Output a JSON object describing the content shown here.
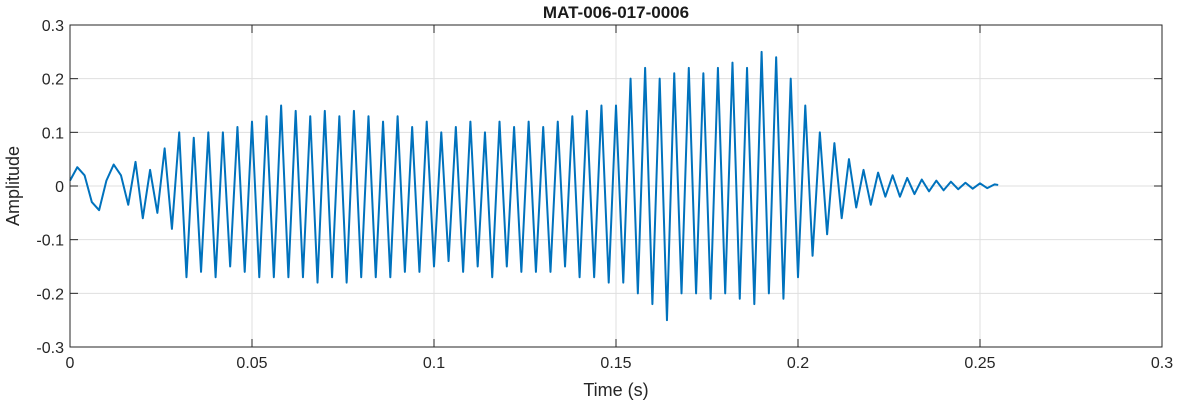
{
  "chart_data": {
    "type": "line",
    "title": "MAT-006-017-0006",
    "xlabel": "Time (s)",
    "ylabel": "Amplitude",
    "xlim": [
      0,
      0.3
    ],
    "ylim": [
      -0.3,
      0.3
    ],
    "grid": true,
    "x_ticks": [
      "0",
      "0.05",
      "0.1",
      "0.15",
      "0.2",
      "0.25",
      "0.3"
    ],
    "y_ticks": [
      "0.3",
      "0.2",
      "0.1",
      "0",
      "-0.1",
      "-0.2",
      "-0.3"
    ],
    "x_tick_values": [
      0,
      0.05,
      0.1,
      0.15,
      0.2,
      0.25,
      0.3
    ],
    "y_tick_values": [
      0.3,
      0.2,
      0.1,
      0,
      -0.1,
      -0.2,
      -0.3
    ],
    "line_color": "#0072BD",
    "series": [
      {
        "x": [
          0,
          0.002,
          0.004,
          0.006,
          0.008,
          0.01,
          0.012,
          0.014,
          0.016,
          0.018,
          0.02,
          0.022,
          0.024,
          0.026,
          0.028,
          0.03,
          0.032,
          0.034,
          0.036,
          0.038,
          0.04,
          0.042,
          0.044,
          0.046,
          0.048,
          0.05,
          0.052,
          0.054,
          0.056,
          0.058,
          0.06,
          0.062,
          0.064,
          0.066,
          0.068,
          0.07,
          0.072,
          0.074,
          0.076,
          0.078,
          0.08,
          0.082,
          0.084,
          0.086,
          0.088,
          0.09,
          0.092,
          0.094,
          0.096,
          0.098,
          0.1,
          0.102,
          0.104,
          0.106,
          0.108,
          0.11,
          0.112,
          0.114,
          0.116,
          0.118,
          0.12,
          0.122,
          0.124,
          0.126,
          0.128,
          0.13,
          0.132,
          0.134,
          0.136,
          0.138,
          0.14,
          0.142,
          0.144,
          0.146,
          0.148,
          0.15,
          0.152,
          0.154,
          0.156,
          0.158,
          0.16,
          0.162,
          0.164,
          0.166,
          0.168,
          0.17,
          0.172,
          0.174,
          0.176,
          0.178,
          0.18,
          0.182,
          0.184,
          0.186,
          0.188,
          0.19,
          0.192,
          0.194,
          0.196,
          0.198,
          0.2,
          0.202,
          0.204,
          0.206,
          0.208,
          0.21,
          0.212,
          0.214,
          0.216,
          0.218,
          0.22,
          0.222,
          0.224,
          0.226,
          0.228,
          0.23,
          0.232,
          0.234,
          0.236,
          0.238,
          0.24,
          0.242,
          0.244,
          0.246,
          0.248,
          0.25,
          0.252,
          0.254,
          0.255
        ],
        "y": [
          0.01,
          0.035,
          0.02,
          -0.03,
          -0.045,
          0.01,
          0.04,
          0.02,
          -0.035,
          0.045,
          -0.06,
          0.03,
          -0.05,
          0.07,
          -0.08,
          0.1,
          -0.17,
          0.09,
          -0.16,
          0.1,
          -0.17,
          0.1,
          -0.15,
          0.11,
          -0.16,
          0.12,
          -0.17,
          0.13,
          -0.17,
          0.15,
          -0.17,
          0.14,
          -0.17,
          0.13,
          -0.18,
          0.14,
          -0.17,
          0.13,
          -0.18,
          0.14,
          -0.17,
          0.13,
          -0.17,
          0.12,
          -0.17,
          0.13,
          -0.16,
          0.11,
          -0.16,
          0.12,
          -0.15,
          0.1,
          -0.14,
          0.11,
          -0.16,
          0.12,
          -0.15,
          0.1,
          -0.17,
          0.12,
          -0.15,
          0.11,
          -0.16,
          0.12,
          -0.16,
          0.11,
          -0.16,
          0.12,
          -0.15,
          0.13,
          -0.17,
          0.14,
          -0.17,
          0.15,
          -0.18,
          0.15,
          -0.18,
          0.2,
          -0.2,
          0.22,
          -0.22,
          0.2,
          -0.25,
          0.21,
          -0.2,
          0.22,
          -0.2,
          0.21,
          -0.21,
          0.22,
          -0.2,
          0.23,
          -0.21,
          0.22,
          -0.22,
          0.25,
          -0.2,
          0.24,
          -0.21,
          0.2,
          -0.17,
          0.15,
          -0.13,
          0.1,
          -0.09,
          0.08,
          -0.06,
          0.05,
          -0.04,
          0.03,
          -0.035,
          0.025,
          -0.02,
          0.02,
          -0.02,
          0.015,
          -0.015,
          0.012,
          -0.01,
          0.01,
          -0.008,
          0.008,
          -0.006,
          0.006,
          -0.005,
          0.005,
          -0.004,
          0.003,
          0.002
        ]
      }
    ]
  }
}
